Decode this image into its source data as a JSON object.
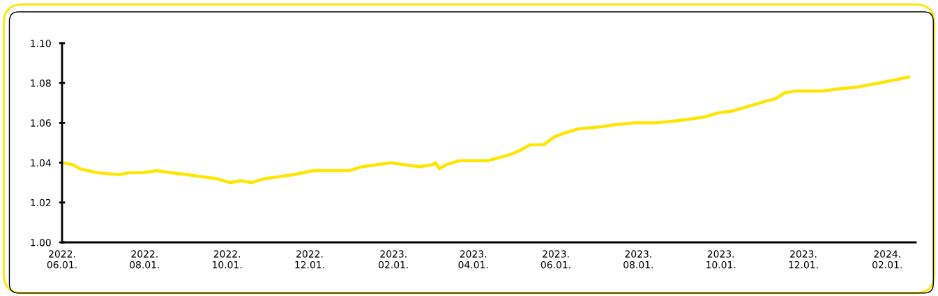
{
  "chart_data": {
    "type": "line",
    "x": [
      "2022-06-01",
      "2022-06-09",
      "2022-06-14",
      "2022-06-20",
      "2022-06-27",
      "2022-07-13",
      "2022-07-21",
      "2022-07-31",
      "2022-08-10",
      "2022-08-20",
      "2022-09-02",
      "2022-09-12",
      "2022-09-23",
      "2022-10-03",
      "2022-10-11",
      "2022-10-19",
      "2022-10-29",
      "2022-11-09",
      "2022-11-19",
      "2022-12-04",
      "2022-12-20",
      "2022-12-30",
      "2023-01-09",
      "2023-01-20",
      "2023-01-30",
      "2023-02-09",
      "2023-02-20",
      "2023-03-02",
      "2023-03-04",
      "2023-03-07",
      "2023-03-12",
      "2023-03-22",
      "2023-04-12",
      "2023-04-17",
      "2023-04-28",
      "2023-05-05",
      "2023-05-13",
      "2023-05-23",
      "2023-05-31",
      "2023-06-08",
      "2023-06-18",
      "2023-07-04",
      "2023-07-14",
      "2023-07-29",
      "2023-08-14",
      "2023-08-29",
      "2023-09-09",
      "2023-09-19",
      "2023-09-29",
      "2023-10-10",
      "2023-10-25",
      "2023-11-04",
      "2023-11-10",
      "2023-11-17",
      "2023-11-25",
      "2023-12-05",
      "2023-12-16",
      "2023-12-26",
      "2024-01-10",
      "2024-01-26",
      "2024-02-10",
      "2024-02-17"
    ],
    "series": [
      {
        "color": "#ffe600",
        "values": [
          1.04,
          1.039,
          1.037,
          1.036,
          1.035,
          1.034,
          1.035,
          1.035,
          1.036,
          1.035,
          1.034,
          1.033,
          1.032,
          1.03,
          1.031,
          1.03,
          1.032,
          1.033,
          1.034,
          1.036,
          1.036,
          1.036,
          1.038,
          1.039,
          1.04,
          1.039,
          1.038,
          1.039,
          1.04,
          1.037,
          1.039,
          1.041,
          1.041,
          1.042,
          1.044,
          1.046,
          1.049,
          1.049,
          1.053,
          1.055,
          1.057,
          1.058,
          1.059,
          1.06,
          1.06,
          1.061,
          1.062,
          1.063,
          1.065,
          1.066,
          1.069,
          1.071,
          1.072,
          1.075,
          1.076,
          1.076,
          1.076,
          1.077,
          1.078,
          1.08,
          1.082,
          1.083
        ]
      }
    ],
    "xlim": [
      "2022-06-01",
      "2024-02-22"
    ],
    "xticks": [
      {
        "value": "2022-06-01",
        "label": "2022.\n06.01."
      },
      {
        "value": "2022-08-01",
        "label": "2022.\n08.01."
      },
      {
        "value": "2022-10-01",
        "label": "2022.\n10.01."
      },
      {
        "value": "2022-12-01",
        "label": "2022.\n12.01."
      },
      {
        "value": "2023-02-01",
        "label": "2023.\n02.01."
      },
      {
        "value": "2023-04-01",
        "label": "2023.\n04.01."
      },
      {
        "value": "2023-06-01",
        "label": "2023.\n06.01."
      },
      {
        "value": "2023-08-01",
        "label": "2023.\n08.01."
      },
      {
        "value": "2023-10-01",
        "label": "2023.\n10.01."
      },
      {
        "value": "2023-12-01",
        "label": "2023.\n12.01."
      },
      {
        "value": "2024-02-01",
        "label": "2024.\n02.01."
      }
    ],
    "ylim": [
      1.0,
      1.1
    ],
    "yticks": [
      {
        "value": 1.0,
        "label": "1.00"
      },
      {
        "value": 1.02,
        "label": "1.02"
      },
      {
        "value": 1.04,
        "label": "1.04"
      },
      {
        "value": 1.06,
        "label": "1.06"
      },
      {
        "value": 1.08,
        "label": "1.08"
      },
      {
        "value": 1.1,
        "label": "1.10"
      }
    ],
    "grid": false,
    "legend": false
  }
}
